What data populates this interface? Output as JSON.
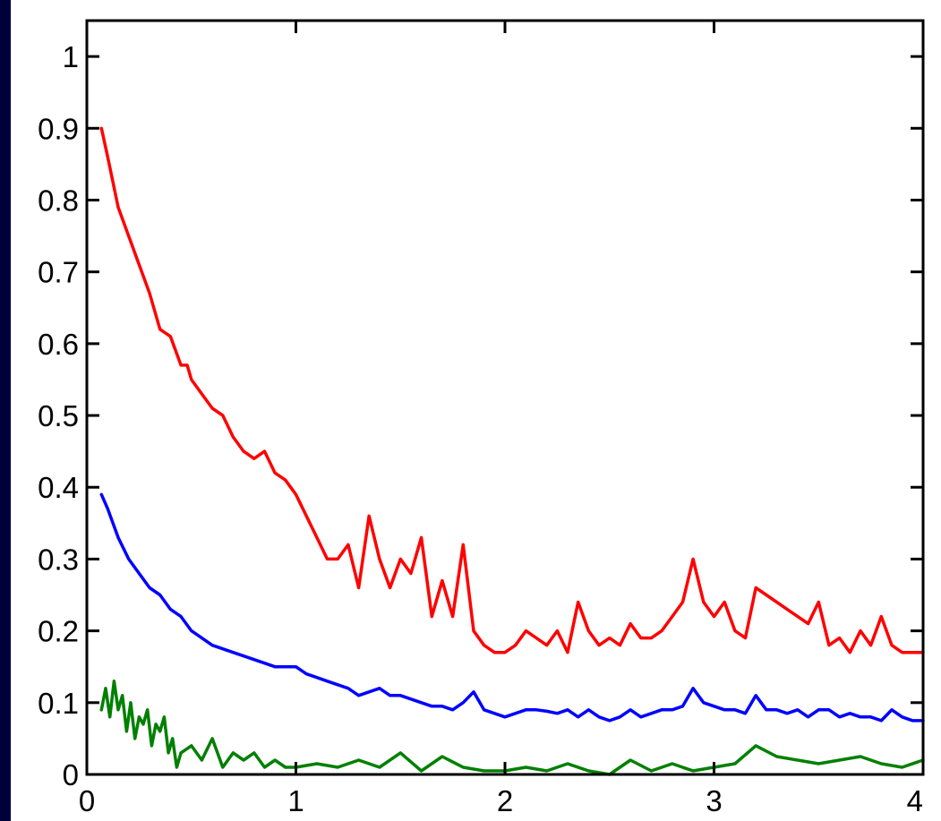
{
  "page": {
    "background": "#00003a",
    "panel_background": "#ffffff"
  },
  "chart_data": {
    "type": "line",
    "title": "",
    "xlabel": "",
    "ylabel": "",
    "xlim": [
      0,
      4
    ],
    "ylim": [
      0,
      1.05
    ],
    "grid": false,
    "x_ticks": [
      0,
      1,
      2,
      3,
      4
    ],
    "x_tick_labels": [
      "0",
      "1",
      "2",
      "3",
      "4"
    ],
    "y_ticks": [
      0,
      0.1,
      0.2,
      0.3,
      0.4,
      0.5,
      0.6,
      0.7,
      0.8,
      0.9,
      1
    ],
    "y_tick_labels": [
      "0",
      "0.1",
      "0.2",
      "0.3",
      "0.4",
      "0.5",
      "0.6",
      "0.7",
      "0.8",
      "0.9",
      "1"
    ],
    "series": [
      {
        "color": "#ff0000",
        "x": [
          0.07,
          0.1,
          0.15,
          0.2,
          0.25,
          0.3,
          0.35,
          0.4,
          0.45,
          0.48,
          0.5,
          0.55,
          0.6,
          0.65,
          0.7,
          0.75,
          0.8,
          0.85,
          0.9,
          0.95,
          1.0,
          1.05,
          1.1,
          1.15,
          1.2,
          1.25,
          1.3,
          1.35,
          1.4,
          1.45,
          1.5,
          1.55,
          1.6,
          1.65,
          1.7,
          1.75,
          1.8,
          1.85,
          1.9,
          1.95,
          2.0,
          2.05,
          2.1,
          2.15,
          2.2,
          2.25,
          2.3,
          2.35,
          2.4,
          2.45,
          2.5,
          2.55,
          2.6,
          2.65,
          2.7,
          2.75,
          2.8,
          2.85,
          2.9,
          2.95,
          3.0,
          3.05,
          3.1,
          3.15,
          3.2,
          3.25,
          3.3,
          3.35,
          3.4,
          3.45,
          3.5,
          3.55,
          3.6,
          3.65,
          3.7,
          3.75,
          3.8,
          3.85,
          3.9,
          3.95,
          4.0
        ],
        "values": [
          0.9,
          0.86,
          0.79,
          0.75,
          0.71,
          0.67,
          0.62,
          0.61,
          0.57,
          0.57,
          0.55,
          0.53,
          0.51,
          0.5,
          0.47,
          0.45,
          0.44,
          0.45,
          0.42,
          0.41,
          0.39,
          0.36,
          0.33,
          0.3,
          0.3,
          0.32,
          0.26,
          0.36,
          0.3,
          0.26,
          0.3,
          0.28,
          0.33,
          0.22,
          0.27,
          0.22,
          0.32,
          0.2,
          0.18,
          0.17,
          0.17,
          0.18,
          0.2,
          0.19,
          0.18,
          0.2,
          0.17,
          0.24,
          0.2,
          0.18,
          0.19,
          0.18,
          0.21,
          0.19,
          0.19,
          0.2,
          0.22,
          0.24,
          0.3,
          0.24,
          0.22,
          0.24,
          0.2,
          0.19,
          0.26,
          0.25,
          0.24,
          0.23,
          0.22,
          0.21,
          0.24,
          0.18,
          0.19,
          0.17,
          0.2,
          0.18,
          0.22,
          0.18,
          0.17,
          0.17,
          0.17
        ]
      },
      {
        "color": "#0000ff",
        "x": [
          0.07,
          0.1,
          0.15,
          0.2,
          0.25,
          0.3,
          0.35,
          0.4,
          0.45,
          0.5,
          0.55,
          0.6,
          0.65,
          0.7,
          0.75,
          0.8,
          0.85,
          0.9,
          0.95,
          1.0,
          1.05,
          1.1,
          1.15,
          1.2,
          1.25,
          1.3,
          1.35,
          1.4,
          1.45,
          1.5,
          1.55,
          1.6,
          1.65,
          1.7,
          1.75,
          1.8,
          1.85,
          1.9,
          1.95,
          2.0,
          2.05,
          2.1,
          2.15,
          2.2,
          2.25,
          2.3,
          2.35,
          2.4,
          2.45,
          2.5,
          2.55,
          2.6,
          2.65,
          2.7,
          2.75,
          2.8,
          2.85,
          2.9,
          2.95,
          3.0,
          3.05,
          3.1,
          3.15,
          3.2,
          3.25,
          3.3,
          3.35,
          3.4,
          3.45,
          3.5,
          3.55,
          3.6,
          3.65,
          3.7,
          3.75,
          3.8,
          3.85,
          3.9,
          3.95,
          4.0
        ],
        "values": [
          0.39,
          0.37,
          0.33,
          0.3,
          0.28,
          0.26,
          0.25,
          0.23,
          0.22,
          0.2,
          0.19,
          0.18,
          0.175,
          0.17,
          0.165,
          0.16,
          0.155,
          0.15,
          0.15,
          0.15,
          0.14,
          0.135,
          0.13,
          0.125,
          0.12,
          0.11,
          0.115,
          0.12,
          0.11,
          0.11,
          0.105,
          0.1,
          0.095,
          0.095,
          0.09,
          0.1,
          0.115,
          0.09,
          0.085,
          0.08,
          0.085,
          0.09,
          0.09,
          0.088,
          0.085,
          0.09,
          0.08,
          0.09,
          0.08,
          0.075,
          0.08,
          0.09,
          0.08,
          0.085,
          0.09,
          0.09,
          0.095,
          0.12,
          0.1,
          0.095,
          0.09,
          0.09,
          0.085,
          0.11,
          0.09,
          0.09,
          0.085,
          0.09,
          0.08,
          0.09,
          0.09,
          0.08,
          0.085,
          0.08,
          0.08,
          0.075,
          0.09,
          0.08,
          0.075,
          0.075
        ]
      },
      {
        "color": "#008000",
        "x": [
          0.07,
          0.09,
          0.11,
          0.13,
          0.15,
          0.17,
          0.19,
          0.21,
          0.23,
          0.25,
          0.27,
          0.29,
          0.31,
          0.33,
          0.35,
          0.37,
          0.39,
          0.41,
          0.43,
          0.45,
          0.5,
          0.55,
          0.6,
          0.65,
          0.7,
          0.75,
          0.8,
          0.85,
          0.9,
          0.95,
          1.0,
          1.1,
          1.2,
          1.3,
          1.4,
          1.5,
          1.6,
          1.7,
          1.8,
          1.9,
          2.0,
          2.1,
          2.2,
          2.3,
          2.4,
          2.5,
          2.6,
          2.7,
          2.8,
          2.9,
          3.0,
          3.1,
          3.2,
          3.3,
          3.4,
          3.5,
          3.6,
          3.7,
          3.8,
          3.9,
          4.0
        ],
        "values": [
          0.09,
          0.12,
          0.08,
          0.13,
          0.09,
          0.11,
          0.06,
          0.1,
          0.05,
          0.08,
          0.07,
          0.09,
          0.04,
          0.07,
          0.06,
          0.08,
          0.03,
          0.05,
          0.01,
          0.03,
          0.04,
          0.02,
          0.05,
          0.01,
          0.03,
          0.02,
          0.03,
          0.01,
          0.02,
          0.01,
          0.01,
          0.015,
          0.01,
          0.02,
          0.01,
          0.03,
          0.005,
          0.025,
          0.01,
          0.005,
          0.005,
          0.01,
          0.005,
          0.015,
          0.005,
          0.0,
          0.02,
          0.005,
          0.015,
          0.005,
          0.01,
          0.015,
          0.04,
          0.025,
          0.02,
          0.015,
          0.02,
          0.025,
          0.015,
          0.01,
          0.02
        ]
      }
    ]
  }
}
